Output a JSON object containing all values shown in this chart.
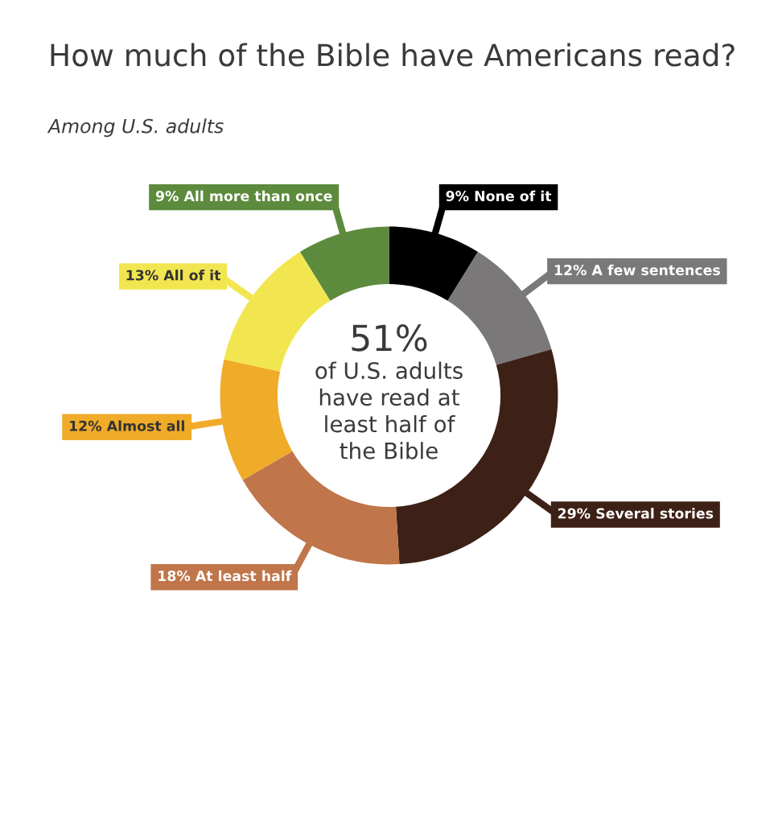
{
  "chart_data": {
    "type": "donut",
    "title": "How much of the Bible have Americans read?",
    "subtitle": "Among U.S. adults",
    "categories": [
      "None of it",
      "A few sentences",
      "Several stories",
      "At least half",
      "Almost all",
      "All of it",
      "All more than once"
    ],
    "values": [
      9,
      12,
      29,
      18,
      12,
      13,
      9
    ],
    "value_labels": [
      "9%",
      "12%",
      "29%",
      "18%",
      "12%",
      "13%",
      "9%"
    ],
    "colors": [
      "#000000",
      "#7a7878",
      "#3d2016",
      "#c0754a",
      "#f0ab28",
      "#f2e650",
      "#5d8b3d"
    ],
    "annotations": [
      "51%",
      "of U.S. adults\nhave read at\nleast half of\nthe Bible"
    ],
    "legend": false
  }
}
